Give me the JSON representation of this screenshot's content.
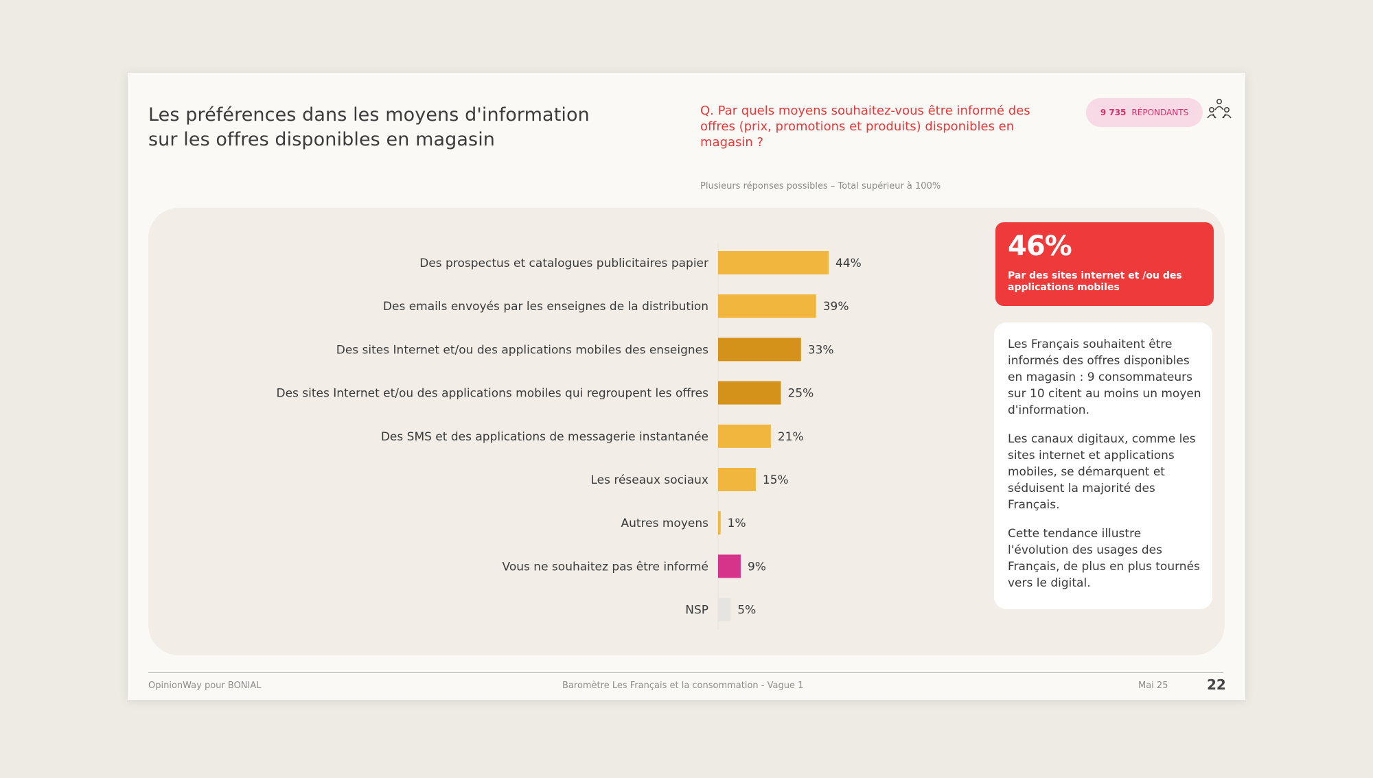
{
  "header": {
    "title_line1": "Les préférences dans les moyens d'information",
    "title_line2": "sur les offres disponibles en magasin",
    "question": "Q. Par quels moyens souhaitez-vous être informé des offres (prix, promotions et produits) disponibles en magasin ?",
    "respondents_count": "9 735",
    "respondents_label": "RÉPONDANTS",
    "note": "Plusieurs réponses possibles – Total supérieur à 100%"
  },
  "chart_data": {
    "type": "bar",
    "orientation": "horizontal",
    "categories": [
      "Des prospectus et catalogues publicitaires papier",
      "Des emails envoyés par les enseignes de la distribution",
      "Des sites Internet et/ou des applications mobiles des enseignes",
      "Des sites Internet et/ou des applications mobiles qui regroupent les offres",
      "Des SMS et des applications de messagerie instantanée",
      "Les réseaux sociaux",
      "Autres moyens",
      "Vous ne souhaitez pas être informé",
      "NSP"
    ],
    "values": [
      44,
      39,
      33,
      25,
      21,
      15,
      1,
      9,
      5
    ],
    "value_labels": [
      "44%",
      "39%",
      "33%",
      "25%",
      "21%",
      "15%",
      "1%",
      "9%",
      "5%"
    ],
    "colors": [
      "#f0b63e",
      "#f0b63e",
      "#d4921a",
      "#d4921a",
      "#f0b63e",
      "#f0b63e",
      "#f0b63e",
      "#d6338a",
      "#e6e4e0"
    ],
    "xlim": [
      0,
      100
    ]
  },
  "kpi": {
    "value": "46%",
    "label": "Par des sites internet et /ou des applications mobiles",
    "color": "#ee3a3a"
  },
  "insights": {
    "p1": "Les Français souhaitent être informés des offres disponibles en magasin : 9 consommateurs sur 10 citent au moins un moyen d'information.",
    "p2": "Les canaux digitaux, comme les sites internet et applications mobiles, se démarquent et séduisent la majorité des Français.",
    "p3": "Cette tendance illustre l'évolution des usages des Français, de plus en plus tournés vers le digital."
  },
  "footer": {
    "source": "OpinionWay pour BONIAL",
    "study": "Baromètre Les Français et la consommation - Vague 1",
    "date": "Mai 25",
    "page": "22"
  },
  "icons": {
    "respondents": "people-group-icon"
  }
}
